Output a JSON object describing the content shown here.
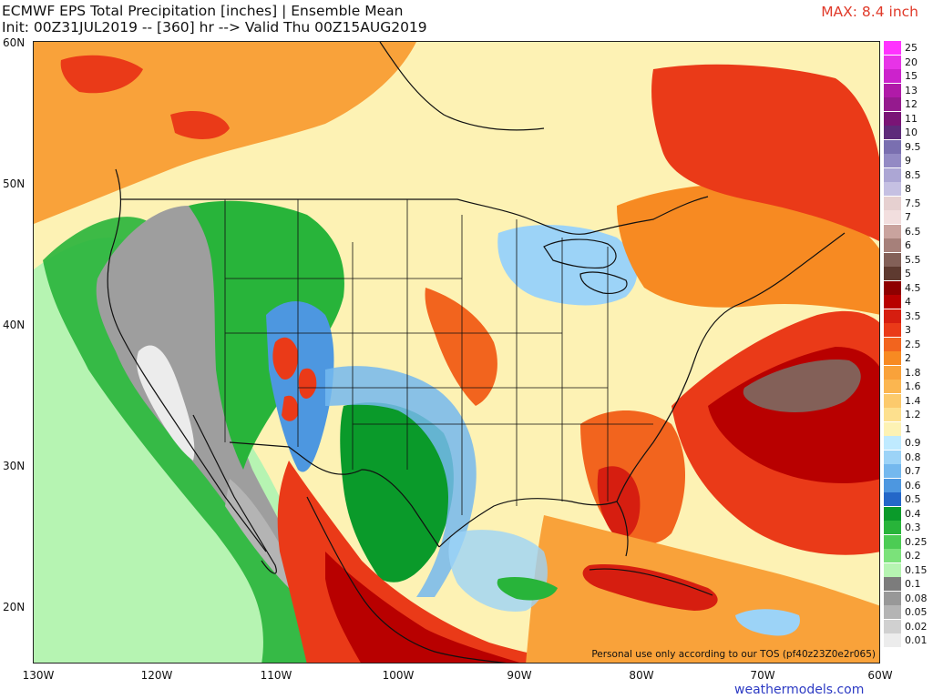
{
  "header": {
    "title_line1": "ECMWF EPS Total Precipitation [inches] | Ensemble Mean",
    "title_line2": "Init: 00Z31JUL2019 -- [360] hr --> Valid Thu 00Z15AUG2019",
    "max_label": "MAX: 8.4 inch"
  },
  "map": {
    "lat_labels": [
      "60N",
      "50N",
      "40N",
      "30N",
      "20N"
    ],
    "lon_labels": [
      "130W",
      "120W",
      "110W",
      "100W",
      "90W",
      "80W",
      "70W",
      "60W"
    ],
    "tos_note": "Personal use only according to our TOS (pf40z23Z0e2r065)",
    "credit": "weathermodels.com",
    "colors": {
      "background_precip": "#fdf2b4",
      "heavy_precip": "#e33a1c",
      "dry_land": "#9e9e9e",
      "outline": "#111111"
    }
  },
  "legend": {
    "entries": [
      {
        "label": "25",
        "color": "#ff33ff"
      },
      {
        "label": "20",
        "color": "#e733e7"
      },
      {
        "label": "15",
        "color": "#cc22cc"
      },
      {
        "label": "13",
        "color": "#b01aa8"
      },
      {
        "label": "12",
        "color": "#951a8e"
      },
      {
        "label": "11",
        "color": "#7a1476"
      },
      {
        "label": "10",
        "color": "#5e2a7a"
      },
      {
        "label": "9.5",
        "color": "#7a6fb0"
      },
      {
        "label": "9",
        "color": "#938ac4"
      },
      {
        "label": "8.5",
        "color": "#aca6d4"
      },
      {
        "label": "8",
        "color": "#c5c0e2"
      },
      {
        "label": "7.5",
        "color": "#e6d0d0"
      },
      {
        "label": "7",
        "color": "#f2dede"
      },
      {
        "label": "6.5",
        "color": "#c9a39e"
      },
      {
        "label": "6",
        "color": "#a6807a"
      },
      {
        "label": "5.5",
        "color": "#836058"
      },
      {
        "label": "5",
        "color": "#5e3a30"
      },
      {
        "label": "4.5",
        "color": "#8e0000"
      },
      {
        "label": "4",
        "color": "#b80000"
      },
      {
        "label": "3.5",
        "color": "#d61e10"
      },
      {
        "label": "3",
        "color": "#ea3a18"
      },
      {
        "label": "2.5",
        "color": "#f2641e"
      },
      {
        "label": "2",
        "color": "#f78a22"
      },
      {
        "label": "1.8",
        "color": "#f9a23a"
      },
      {
        "label": "1.6",
        "color": "#fbb650"
      },
      {
        "label": "1.4",
        "color": "#fcca6c"
      },
      {
        "label": "1.2",
        "color": "#fde08e"
      },
      {
        "label": "1",
        "color": "#fdf2b4"
      },
      {
        "label": "0.9",
        "color": "#bfeaff"
      },
      {
        "label": "0.8",
        "color": "#9cd3f7"
      },
      {
        "label": "0.7",
        "color": "#74b8ee"
      },
      {
        "label": "0.6",
        "color": "#4d97e0"
      },
      {
        "label": "0.5",
        "color": "#2467c8"
      },
      {
        "label": "0.4",
        "color": "#0a9a2a"
      },
      {
        "label": "0.3",
        "color": "#28b43a"
      },
      {
        "label": "0.25",
        "color": "#4ccc54"
      },
      {
        "label": "0.2",
        "color": "#7be27a"
      },
      {
        "label": "0.15",
        "color": "#b6f4b2"
      },
      {
        "label": "0.1",
        "color": "#7c7c7c"
      },
      {
        "label": "0.08",
        "color": "#989898"
      },
      {
        "label": "0.05",
        "color": "#b4b4b4"
      },
      {
        "label": "0.02",
        "color": "#d0d0d0"
      },
      {
        "label": "0.01",
        "color": "#ececec"
      }
    ]
  }
}
